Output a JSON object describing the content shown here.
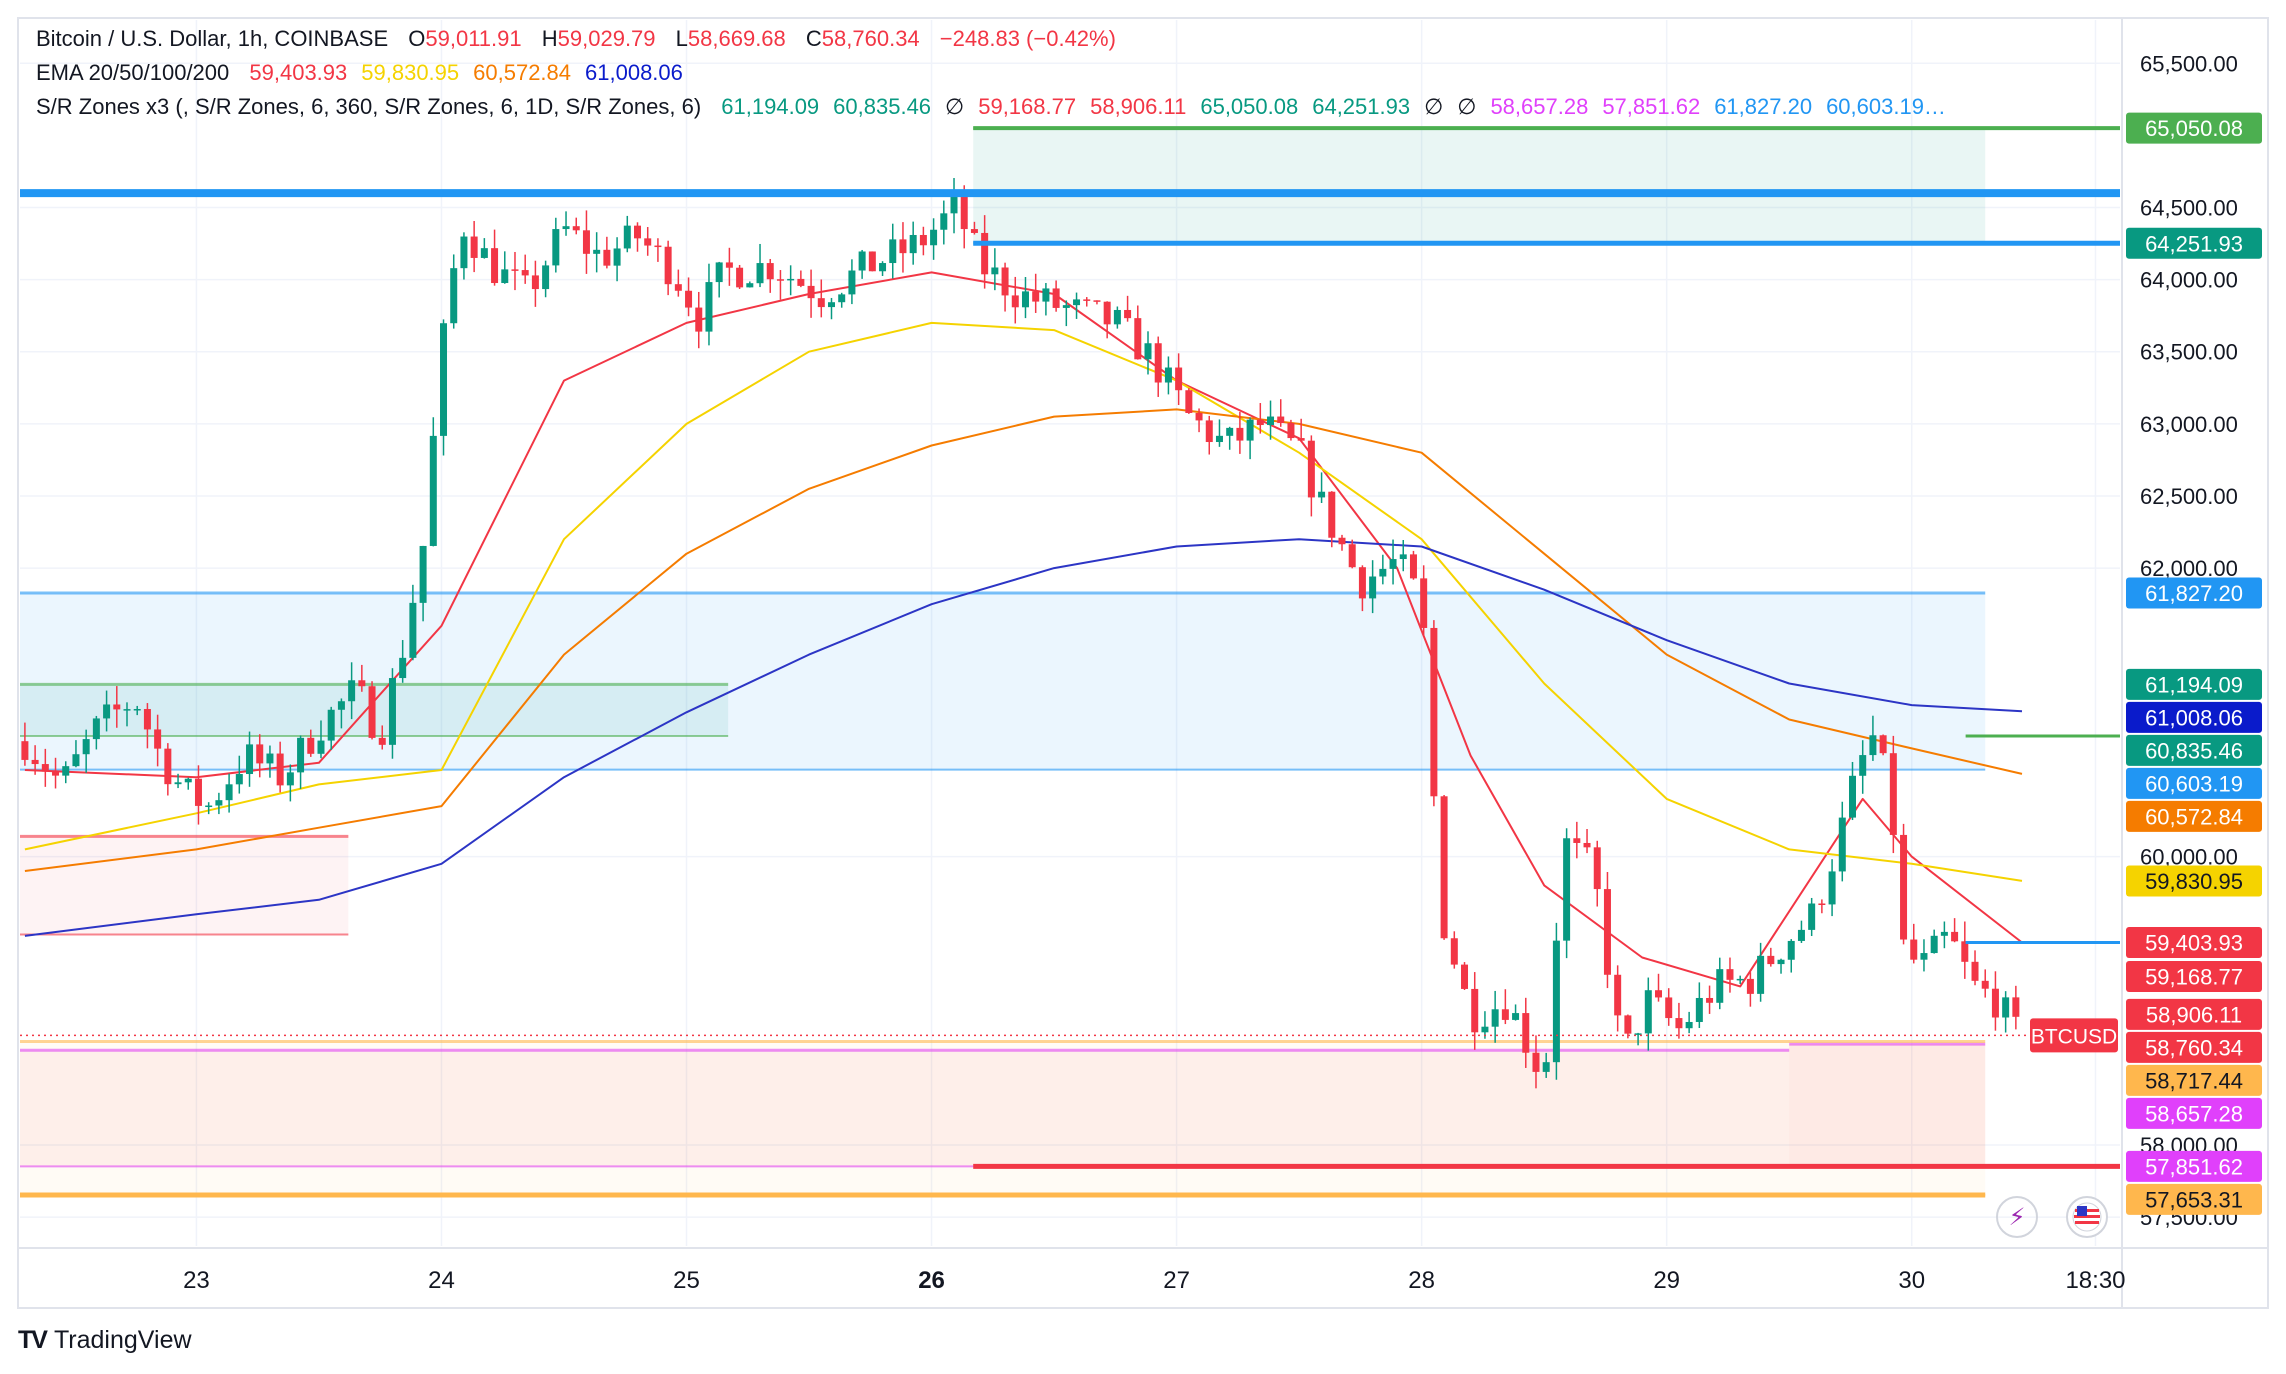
{
  "header": {
    "symbol_title": "Bitcoin / U.S. Dollar, 1h, COINBASE",
    "ohlc": [
      {
        "label": "O",
        "value": "59,011.91"
      },
      {
        "label": "H",
        "value": "59,029.79"
      },
      {
        "label": "L",
        "value": "58,669.68"
      },
      {
        "label": "C",
        "value": "58,760.34"
      }
    ],
    "change": "−248.83 (−0.42%)"
  },
  "ema_legend": {
    "label": "EMA 20/50/100/200",
    "values": [
      {
        "text": "59,403.93",
        "color": "#F23645"
      },
      {
        "text": "59,830.95",
        "color": "#F5D300"
      },
      {
        "text": "60,572.84",
        "color": "#F57C00"
      },
      {
        "text": "61,008.06",
        "color": "#0A1BCB"
      }
    ]
  },
  "sr_legend": {
    "label": "S/R Zones x3 (, S/R Zones, 6, 360, S/R Zones, 6, 1D, S/R Zones, 6)",
    "values": [
      {
        "text": "61,194.09",
        "color": "#089981"
      },
      {
        "text": "60,835.46",
        "color": "#089981"
      },
      {
        "text": "∅",
        "color": "#131722"
      },
      {
        "text": "59,168.77",
        "color": "#F23645"
      },
      {
        "text": "58,906.11",
        "color": "#F23645"
      },
      {
        "text": "65,050.08",
        "color": "#089981"
      },
      {
        "text": "64,251.93",
        "color": "#089981"
      },
      {
        "text": "∅",
        "color": "#131722"
      },
      {
        "text": "∅",
        "color": "#131722"
      },
      {
        "text": "58,657.28",
        "color": "#E040FB"
      },
      {
        "text": "57,851.62",
        "color": "#E040FB"
      },
      {
        "text": "61,827.20",
        "color": "#2196F3"
      },
      {
        "text": "60,603.19…",
        "color": "#2196F3"
      }
    ]
  },
  "brand": {
    "name": "TradingView"
  },
  "icons": [
    "lightning-icon",
    "flag-icon"
  ],
  "chart_data": {
    "type": "candlestick",
    "ylim": [
      57300,
      65800
    ],
    "y_ticks": [
      {
        "value": 57500,
        "label": "57,500.00"
      },
      {
        "value": 58000,
        "label": "58,000.00"
      },
      {
        "value": 60000,
        "label": "60,000.00"
      },
      {
        "value": 62000,
        "label": "62,000.00"
      },
      {
        "value": 62500,
        "label": "62,500.00"
      },
      {
        "value": 63000,
        "label": "63,000.00"
      },
      {
        "value": 63500,
        "label": "63,500.00"
      },
      {
        "value": 64000,
        "label": "64,000.00"
      },
      {
        "value": 64500,
        "label": "64,500.00"
      },
      {
        "value": 65500,
        "label": "65,500.00"
      }
    ],
    "xlim": [
      22.28,
      30.85
    ],
    "x_ticks": [
      {
        "value": 23,
        "label": "23",
        "bold": false
      },
      {
        "value": 24,
        "label": "24",
        "bold": false
      },
      {
        "value": 25,
        "label": "25",
        "bold": false
      },
      {
        "value": 26,
        "label": "26",
        "bold": true
      },
      {
        "value": 27,
        "label": "27",
        "bold": false
      },
      {
        "value": 28,
        "label": "28",
        "bold": false
      },
      {
        "value": 29,
        "label": "29",
        "bold": false
      },
      {
        "value": 30,
        "label": "30",
        "bold": false
      },
      {
        "value": 30.75,
        "label": "18:30",
        "bold": false
      }
    ],
    "price_series": [
      [
        22.3,
        60800
      ],
      [
        22.45,
        60500
      ],
      [
        22.6,
        60900
      ],
      [
        22.75,
        61100
      ],
      [
        22.85,
        60700
      ],
      [
        22.95,
        60450
      ],
      [
        23.05,
        60350
      ],
      [
        23.2,
        60700
      ],
      [
        23.35,
        60550
      ],
      [
        23.5,
        60900
      ],
      [
        23.65,
        61150
      ],
      [
        23.75,
        60850
      ],
      [
        23.85,
        61500
      ],
      [
        23.93,
        62200
      ],
      [
        24.0,
        63500
      ],
      [
        24.08,
        64400
      ],
      [
        24.2,
        64100
      ],
      [
        24.35,
        63900
      ],
      [
        24.5,
        64350
      ],
      [
        24.65,
        64150
      ],
      [
        24.8,
        64300
      ],
      [
        24.95,
        64050
      ],
      [
        25.05,
        63750
      ],
      [
        25.15,
        64050
      ],
      [
        25.35,
        64100
      ],
      [
        25.55,
        63900
      ],
      [
        25.75,
        64100
      ],
      [
        25.95,
        64250
      ],
      [
        26.1,
        64500
      ],
      [
        26.2,
        64100
      ],
      [
        26.35,
        63900
      ],
      [
        26.55,
        63800
      ],
      [
        26.75,
        63700
      ],
      [
        26.9,
        63450
      ],
      [
        27.05,
        63050
      ],
      [
        27.2,
        62850
      ],
      [
        27.35,
        63000
      ],
      [
        27.5,
        62800
      ],
      [
        27.6,
        62400
      ],
      [
        27.75,
        61900
      ],
      [
        27.9,
        62050
      ],
      [
        28.0,
        61750
      ],
      [
        28.08,
        59600
      ],
      [
        28.2,
        58900
      ],
      [
        28.35,
        59000
      ],
      [
        28.5,
        58450
      ],
      [
        28.58,
        60100
      ],
      [
        28.7,
        59900
      ],
      [
        28.82,
        58600
      ],
      [
        28.92,
        59000
      ],
      [
        29.05,
        58800
      ],
      [
        29.2,
        59100
      ],
      [
        29.35,
        59150
      ],
      [
        29.48,
        59400
      ],
      [
        29.6,
        59600
      ],
      [
        29.7,
        60100
      ],
      [
        29.78,
        60600
      ],
      [
        29.85,
        60850
      ],
      [
        29.92,
        60300
      ],
      [
        29.97,
        59300
      ],
      [
        30.05,
        59250
      ],
      [
        30.15,
        59450
      ],
      [
        30.25,
        59100
      ],
      [
        30.35,
        59000
      ],
      [
        30.43,
        58760
      ]
    ],
    "ema_lines": [
      {
        "name": "EMA 20",
        "color": "#F23645",
        "points": [
          [
            22.3,
            60600
          ],
          [
            23.0,
            60550
          ],
          [
            23.5,
            60650
          ],
          [
            24.0,
            61600
          ],
          [
            24.5,
            63300
          ],
          [
            25.0,
            63700
          ],
          [
            25.5,
            63900
          ],
          [
            26.0,
            64050
          ],
          [
            26.5,
            63900
          ],
          [
            27.0,
            63300
          ],
          [
            27.5,
            62900
          ],
          [
            27.9,
            62000
          ],
          [
            28.2,
            60700
          ],
          [
            28.5,
            59800
          ],
          [
            28.9,
            59300
          ],
          [
            29.3,
            59100
          ],
          [
            29.8,
            60400
          ],
          [
            30.0,
            60000
          ],
          [
            30.45,
            59403.93
          ]
        ]
      },
      {
        "name": "EMA 50",
        "color": "#F5D300",
        "points": [
          [
            22.3,
            60050
          ],
          [
            23.0,
            60300
          ],
          [
            23.5,
            60500
          ],
          [
            24.0,
            60600
          ],
          [
            24.5,
            62200
          ],
          [
            25.0,
            63000
          ],
          [
            25.5,
            63500
          ],
          [
            26.0,
            63700
          ],
          [
            26.5,
            63650
          ],
          [
            27.0,
            63300
          ],
          [
            27.5,
            62800
          ],
          [
            28.0,
            62200
          ],
          [
            28.5,
            61200
          ],
          [
            29.0,
            60400
          ],
          [
            29.5,
            60050
          ],
          [
            30.0,
            59950
          ],
          [
            30.45,
            59830.95
          ]
        ]
      },
      {
        "name": "EMA 100",
        "color": "#F57C00",
        "points": [
          [
            22.3,
            59900
          ],
          [
            23.0,
            60050
          ],
          [
            23.5,
            60200
          ],
          [
            24.0,
            60350
          ],
          [
            24.5,
            61400
          ],
          [
            25.0,
            62100
          ],
          [
            25.5,
            62550
          ],
          [
            26.0,
            62850
          ],
          [
            26.5,
            63050
          ],
          [
            27.0,
            63100
          ],
          [
            27.5,
            63000
          ],
          [
            28.0,
            62800
          ],
          [
            28.5,
            62100
          ],
          [
            29.0,
            61400
          ],
          [
            29.5,
            60950
          ],
          [
            30.0,
            60750
          ],
          [
            30.45,
            60572.84
          ]
        ]
      },
      {
        "name": "EMA 200",
        "color": "#2C35C5",
        "points": [
          [
            22.3,
            59450
          ],
          [
            23.0,
            59600
          ],
          [
            23.5,
            59700
          ],
          [
            24.0,
            59950
          ],
          [
            24.5,
            60550
          ],
          [
            25.0,
            61000
          ],
          [
            25.5,
            61400
          ],
          [
            26.0,
            61750
          ],
          [
            26.5,
            62000
          ],
          [
            27.0,
            62150
          ],
          [
            27.5,
            62200
          ],
          [
            28.0,
            62150
          ],
          [
            28.5,
            61850
          ],
          [
            29.0,
            61500
          ],
          [
            29.5,
            61200
          ],
          [
            30.0,
            61050
          ],
          [
            30.45,
            61008.06
          ]
        ]
      }
    ],
    "zones": [
      {
        "x0": 22.28,
        "x1": 30.3,
        "y0": 60603.19,
        "y1": 61827.2,
        "fill": "#2196F3",
        "opacity": 0.09,
        "edge": "#2196F3"
      },
      {
        "x0": 22.28,
        "x1": 25.17,
        "y0": 60835.46,
        "y1": 61194.09,
        "fill": "#089981",
        "opacity": 0.09,
        "edge": "#4CAF50"
      },
      {
        "x0": 22.28,
        "x1": 23.62,
        "y0": 59460,
        "y1": 60140,
        "fill": "#F23645",
        "opacity": 0.06,
        "edge": "#F23645"
      },
      {
        "x0": 26.17,
        "x1": 30.3,
        "y0": 64251.93,
        "y1": 65050.08,
        "fill": "#089981",
        "opacity": 0.09,
        "edge": "#4CAF50"
      },
      {
        "x0": 22.28,
        "x1": 29.5,
        "y0": 57851.62,
        "y1": 58657.28,
        "fill": "#F23645",
        "opacity": 0.06,
        "edge": "#E040FB"
      },
      {
        "x0": 29.5,
        "x1": 30.3,
        "y0": 57851.62,
        "y1": 58700,
        "fill": "#F23645",
        "opacity": 0.09,
        "edge": "#E040FB"
      },
      {
        "x0": 22.28,
        "x1": 30.3,
        "y0": 57653.31,
        "y1": 58717.44,
        "fill": "#FFB74D",
        "opacity": 0.06,
        "edge": "#FFB74D"
      }
    ],
    "levels": [
      {
        "value": 64600,
        "x0": 22.28,
        "x1": 30.85,
        "color": "#2196F3",
        "width": 8
      },
      {
        "value": 64251.93,
        "x0": 26.17,
        "x1": 30.85,
        "color": "#2196F3",
        "width": 5
      },
      {
        "value": 65050.08,
        "x0": 26.17,
        "x1": 30.85,
        "color": "#4CAF50",
        "width": 4
      },
      {
        "value": 57851.62,
        "x0": 26.17,
        "x1": 30.85,
        "color": "#F23645",
        "width": 5
      },
      {
        "value": 57653.31,
        "x0": 22.28,
        "x1": 30.3,
        "color": "#FFB74D",
        "width": 5
      },
      {
        "value": 59403.93,
        "x0": 30.22,
        "x1": 30.85,
        "color": "#2196F3",
        "width": 3
      },
      {
        "value": 60835.46,
        "x0": 30.22,
        "x1": 30.85,
        "color": "#4CAF50",
        "width": 3
      }
    ],
    "price_badges": [
      {
        "value": 65050.08,
        "label": "65,050.08",
        "bg": "#4CAF50",
        "fg": "#ffffff"
      },
      {
        "value": 64251.93,
        "label": "64,251.93",
        "bg": "#089981",
        "fg": "#ffffff"
      },
      {
        "value": 61827.2,
        "label": "61,827.20",
        "bg": "#2196F3",
        "fg": "#ffffff"
      },
      {
        "value": 61194.09,
        "label": "61,194.09",
        "bg": "#089981",
        "fg": "#ffffff"
      },
      {
        "value": 61008.06,
        "label": "61,008.06",
        "bg": "#0A1BCB",
        "fg": "#ffffff"
      },
      {
        "value": 60835.46,
        "label": "60,835.46",
        "bg": "#089981",
        "fg": "#ffffff"
      },
      {
        "value": 60603.19,
        "label": "60,603.19",
        "bg": "#2196F3",
        "fg": "#ffffff"
      },
      {
        "value": 60572.84,
        "label": "60,572.84",
        "bg": "#F57C00",
        "fg": "#ffffff"
      },
      {
        "value": 59830.95,
        "label": "59,830.95",
        "bg": "#F5D300",
        "fg": "#131722"
      },
      {
        "value": 59403.93,
        "label": "59,403.93",
        "bg": "#F23645",
        "fg": "#ffffff"
      },
      {
        "value": 59168.77,
        "label": "59,168.77",
        "bg": "#F23645",
        "fg": "#ffffff"
      },
      {
        "value": 58906.11,
        "label": "58,906.11",
        "bg": "#F23645",
        "fg": "#ffffff"
      },
      {
        "value": 58760.34,
        "label": "58,760.34",
        "bg": "#F23645",
        "fg": "#ffffff"
      },
      {
        "value": 58717.44,
        "label": "58,717.44",
        "bg": "#FFB74D",
        "fg": "#131722"
      },
      {
        "value": 58657.28,
        "label": "58,657.28",
        "bg": "#E040FB",
        "fg": "#ffffff"
      },
      {
        "value": 57851.62,
        "label": "57,851.62",
        "bg": "#E040FB",
        "fg": "#ffffff"
      },
      {
        "value": 57653.31,
        "label": "57,653.31",
        "bg": "#FFB74D",
        "fg": "#131722"
      }
    ],
    "symbol_badge": {
      "label": "BTCUSD",
      "value": 58760.34,
      "bg": "#F23645"
    },
    "up_color": "#089981",
    "down_color": "#F23645",
    "grid": true
  }
}
